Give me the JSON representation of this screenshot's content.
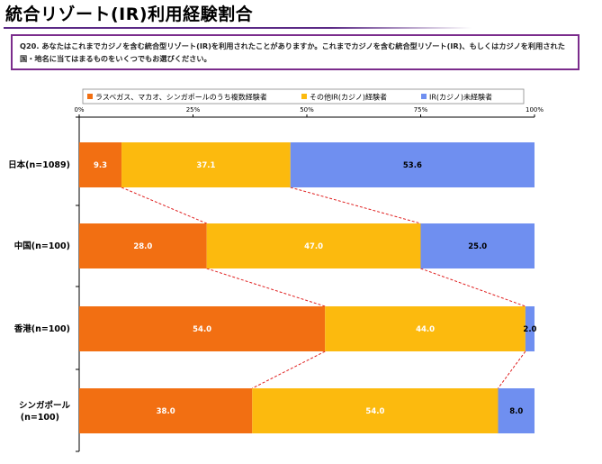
{
  "header": {
    "title": "統合リゾート(IR)利用経験割合",
    "question": "Q20. あなたはこれまでカジノを含む統合型リゾート(IR)を利用されたことがありますか。これまでカジノを含む統合型リゾート(IR)、もしくはカジノを利用された国・地名に当てはまるものをいくつでもお選びください。"
  },
  "chart_data": {
    "type": "bar",
    "orientation": "horizontal-stacked-100",
    "categories": [
      "日本(n=1089)",
      "中国(n=100)",
      "香港(n=100)",
      "シンガポール\n(n=100)"
    ],
    "series": [
      {
        "name": "ラスベガス、マカオ、シンガポールのうち複数経験者",
        "color": "#f26f12",
        "values": [
          9.3,
          28.0,
          54.0,
          38.0
        ]
      },
      {
        "name": "その他IR(カジノ)経験者",
        "color": "#fcba0e",
        "values": [
          37.1,
          47.0,
          44.0,
          54.0
        ]
      },
      {
        "name": "IR(カジノ)未経験者",
        "color": "#6f8ff0",
        "values": [
          53.6,
          25.0,
          2.0,
          8.0
        ]
      }
    ],
    "xticks": [
      "0%",
      "25%",
      "50%",
      "75%",
      "100%"
    ],
    "xlim": [
      0,
      100
    ],
    "legend_position": "top",
    "connector_lines": true,
    "connector_color": "#e02020"
  }
}
